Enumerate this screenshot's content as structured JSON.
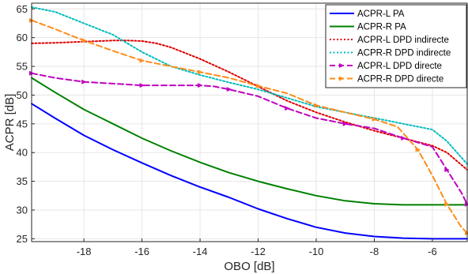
{
  "chart_data": {
    "type": "line",
    "xlabel": "OBO [dB]",
    "ylabel": "ACPR [dB]",
    "xlim": [
      -19.8,
      -4.8
    ],
    "ylim": [
      24.5,
      66
    ],
    "x_ticks": [
      -18,
      -16,
      -14,
      -12,
      -10,
      -8,
      -6
    ],
    "y_ticks": [
      25,
      30,
      35,
      40,
      45,
      50,
      55,
      60,
      65
    ],
    "grid": true,
    "legend_position": "top-right",
    "series": [
      {
        "name": "ACPR-L PA",
        "color": "#0000ff",
        "style": "solid",
        "x": [
          -19.8,
          -19,
          -18,
          -17,
          -16,
          -15,
          -14,
          -13,
          -12,
          -11,
          -10,
          -9,
          -8,
          -7,
          -6,
          -5.5,
          -4.8
        ],
        "y": [
          48.5,
          46,
          43,
          40.5,
          38.2,
          36,
          34,
          32.2,
          30.2,
          28.5,
          27,
          26,
          25.4,
          25.1,
          25.0,
          25.0,
          25.0
        ]
      },
      {
        "name": "ACPR-R  PA",
        "color": "#008000",
        "style": "solid",
        "x": [
          -19.8,
          -19,
          -18,
          -17,
          -16,
          -15,
          -14,
          -13,
          -12,
          -11,
          -10,
          -9,
          -8,
          -7,
          -6,
          -5.5,
          -4.8
        ],
        "y": [
          53,
          50.5,
          47.5,
          45,
          42.5,
          40.3,
          38.3,
          36.5,
          35,
          33.7,
          32.5,
          31.6,
          31.1,
          30.9,
          30.9,
          30.9,
          30.9
        ]
      },
      {
        "name": "ACPR-L DPD indirecte",
        "color": "#e00000",
        "style": "dotted",
        "x": [
          -19.8,
          -19,
          -18,
          -17,
          -16.5,
          -16,
          -15.5,
          -15,
          -14,
          -13,
          -12,
          -11,
          -10,
          -9,
          -8,
          -7,
          -6,
          -5.5,
          -4.8
        ],
        "y": [
          59,
          59.1,
          59.3,
          59.5,
          59.5,
          59.4,
          59,
          58.3,
          56.3,
          54,
          51.5,
          49,
          47,
          45.3,
          43.8,
          42.5,
          41.2,
          40,
          37
        ]
      },
      {
        "name": "ACPR-R DPD indirecte",
        "color": "#00bcbc",
        "style": "dotted",
        "x": [
          -19.8,
          -19,
          -18,
          -17,
          -16,
          -15,
          -14,
          -13,
          -12,
          -11,
          -10,
          -9,
          -8,
          -7,
          -6,
          -5.5,
          -4.8
        ],
        "y": [
          65.3,
          64.5,
          62.5,
          60.5,
          57.5,
          55,
          53.5,
          52.2,
          51,
          49.5,
          48,
          47,
          46,
          45,
          44,
          42,
          38
        ]
      },
      {
        "name": "ACPR-L DPD directe",
        "color": "#c000c0",
        "style": "dashed-marker",
        "x": [
          -19.8,
          -19,
          -18,
          -17,
          -16,
          -15,
          -14,
          -13.5,
          -13,
          -12,
          -11,
          -10,
          -9,
          -8,
          -7,
          -6,
          -5.5,
          -5,
          -4.8
        ],
        "y": [
          53.8,
          53,
          52.3,
          52,
          51.7,
          51.7,
          51.7,
          51.5,
          51,
          49.8,
          47.7,
          46,
          45,
          44.2,
          42.5,
          41,
          37,
          33,
          31
        ]
      },
      {
        "name": "ACPR-R DPD directe",
        "color": "#ff8c1a",
        "style": "dashed-marker",
        "x": [
          -19.8,
          -19,
          -18,
          -17,
          -16,
          -15,
          -14,
          -13,
          -12,
          -11,
          -10,
          -9,
          -8,
          -7.2,
          -6.5,
          -6,
          -5.5,
          -5,
          -4.8
        ],
        "y": [
          63,
          61.5,
          59.5,
          57.7,
          56,
          55,
          54,
          53,
          51.6,
          50.3,
          48.2,
          47,
          45.8,
          44.5,
          40.5,
          36,
          31,
          27,
          26
        ]
      }
    ]
  }
}
